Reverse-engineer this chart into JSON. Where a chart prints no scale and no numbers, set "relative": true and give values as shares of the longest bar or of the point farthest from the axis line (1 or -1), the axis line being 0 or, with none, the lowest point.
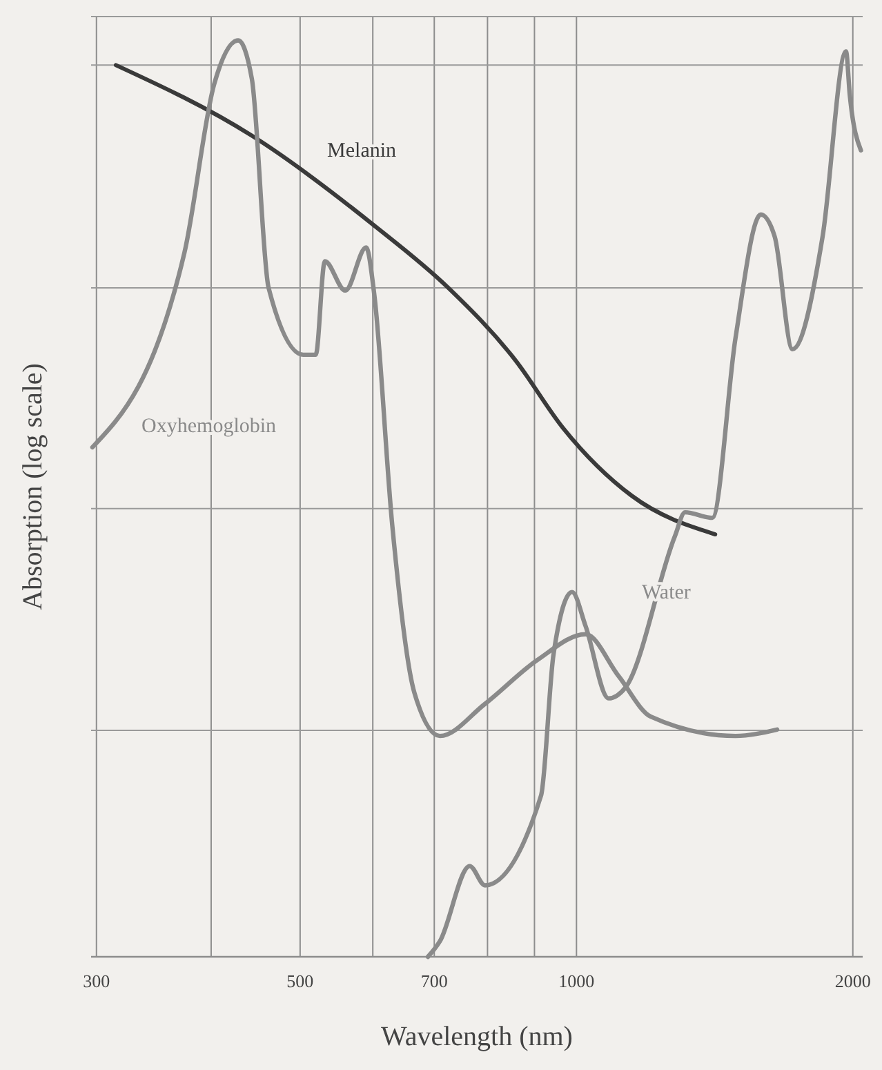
{
  "chart_data": {
    "type": "line",
    "xlabel": "Wavelength (nm)",
    "ylabel": "Absorption (log scale)",
    "log": "x",
    "relative": true,
    "grid": true,
    "line_style": "solid",
    "xlim": [
      296,
      2050
    ],
    "xticks": [
      300,
      {
        "value": 400,
        "label": null
      },
      500,
      {
        "value": 600,
        "label": null
      },
      700,
      {
        "value": 800,
        "label": null
      },
      {
        "value": 900,
        "label": null
      },
      1000,
      2000
    ],
    "series": [
      {
        "name": "Melanin",
        "color": "#3a3a3a",
        "x": [
          315,
          443,
          602,
          725,
          858,
          967,
          1149,
          1416
        ],
        "values": [
          0.973,
          0.896,
          0.798,
          0.73,
          0.651,
          0.577,
          0.503,
          0.461
        ]
      },
      {
        "name": "Oxyhemoglobin",
        "color": "#8a8a8a",
        "x": [
          297,
          374,
          403,
          428,
          443,
          462,
          504,
          520,
          532,
          560,
          590,
          602,
          630,
          666,
          710,
          795,
          907,
          1023,
          1112,
          1205,
          1490,
          1654
        ],
        "values": [
          0.556,
          0.768,
          0.952,
          1,
          0.958,
          0.73,
          0.657,
          0.657,
          0.759,
          0.727,
          0.774,
          0.724,
          0.471,
          0.288,
          0.241,
          0.276,
          0.324,
          0.352,
          0.306,
          0.262,
          0.241,
          0.248
        ]
      },
      {
        "name": "Water",
        "color": "#8a8a8a",
        "x": [
          689,
          710,
          765,
          795,
          915,
          944,
          989,
          1023,
          1084,
          1131,
          1280,
          1313,
          1406,
          1490,
          1588,
          1644,
          1719,
          1854,
          1966,
          1985,
          2041
        ],
        "values": [
          0,
          0.017,
          0.099,
          0.078,
          0.176,
          0.33,
          0.398,
          0.361,
          0.282,
          0.294,
          0.459,
          0.485,
          0.479,
          0.675,
          0.81,
          0.786,
          0.663,
          0.786,
          0.988,
          0.94,
          0.88
        ]
      }
    ]
  }
}
